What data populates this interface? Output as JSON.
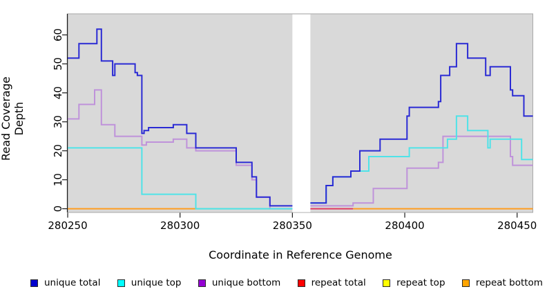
{
  "chart": {
    "xlabel": "Coordinate in Reference Genome",
    "ylabel": "Read Coverage Depth"
  },
  "chart_data": {
    "type": "step-line",
    "title": "",
    "xlabel": "Coordinate in Reference Genome",
    "ylabel": "Read Coverage Depth",
    "x_ticks": [
      280250,
      280300,
      280350,
      280400,
      280450
    ],
    "y_ticks": [
      0,
      10,
      20,
      30,
      40,
      50,
      60
    ],
    "xlim": [
      280250,
      280457
    ],
    "ylim": [
      -1.3,
      67.3
    ],
    "panel_bg": "#d9d9d9",
    "panel_border": "#a8a8a8",
    "no_data_gap": {
      "from": 280350,
      "to": 280358,
      "color": "#ffffff"
    },
    "series": [
      {
        "name": "repeat bottom",
        "legend_color": "#ffa500",
        "line_color": "#ff9d1e",
        "regions": [
          {
            "steps": [
              [
                280250,
                0
              ]
            ],
            "end": 280307
          },
          {
            "steps": [
              [
                280377,
                0
              ]
            ],
            "end": 280457
          }
        ]
      },
      {
        "name": "repeat top",
        "legend_color": "#ffff00",
        "line_color": "#ffff00",
        "regions": [
          {
            "steps": [
              [
                280307,
                0
              ]
            ],
            "end": 280350,
            "color": "#8bd89b",
            "note": "appears green where yellow and cyan overlap at 0"
          }
        ]
      },
      {
        "name": "repeat total",
        "legend_color": "#ff0000",
        "line_color": "#e03a5e",
        "regions": [
          {
            "steps": [
              [
                280358,
                0
              ]
            ],
            "end": 280377
          }
        ]
      },
      {
        "name": "unique bottom",
        "legend_color": "#9400d3",
        "line_color": "#bf92da",
        "regions": [
          {
            "steps": [
              [
                280250,
                31
              ],
              [
                280255,
                36
              ],
              [
                280262,
                41
              ],
              [
                280265,
                29
              ],
              [
                280271,
                25
              ],
              [
                280283,
                22
              ],
              [
                280285,
                23
              ],
              [
                280297,
                24
              ],
              [
                280303,
                21
              ],
              [
                280307,
                20
              ],
              [
                280325,
                15
              ],
              [
                280332,
                10
              ],
              [
                280334,
                4
              ],
              [
                280340,
                0
              ]
            ],
            "end": 280350
          },
          {
            "steps": [
              [
                280358,
                1
              ],
              [
                280377,
                2
              ],
              [
                280386,
                7
              ],
              [
                280401,
                14
              ],
              [
                280415,
                16
              ],
              [
                280417,
                25
              ],
              [
                280447,
                18
              ],
              [
                280448,
                15
              ]
            ],
            "end": 280457
          }
        ]
      },
      {
        "name": "unique top",
        "legend_color": "#00ffff",
        "line_color": "#4fe3e8",
        "regions": [
          {
            "steps": [
              [
                280250,
                21
              ],
              [
                280283,
                5
              ],
              [
                280307,
                0
              ]
            ],
            "end": 280350
          },
          {
            "steps": [
              [
                280358,
                2
              ],
              [
                280365,
                8
              ],
              [
                280368,
                11
              ],
              [
                280376,
                13
              ],
              [
                280384,
                18
              ],
              [
                280402,
                21
              ],
              [
                280419,
                24
              ],
              [
                280423,
                32
              ],
              [
                280428,
                27
              ],
              [
                280437,
                21
              ],
              [
                280438,
                24
              ],
              [
                280452,
                17
              ]
            ],
            "end": 280457
          }
        ]
      },
      {
        "name": "unique total",
        "legend_color": "#0000cd",
        "line_color": "#2a2ad4",
        "regions": [
          {
            "steps": [
              [
                280250,
                52
              ],
              [
                280255,
                57
              ],
              [
                280263,
                62
              ],
              [
                280265,
                51
              ],
              [
                280270,
                46
              ],
              [
                280271,
                50
              ],
              [
                280280,
                47
              ],
              [
                280281,
                46
              ],
              [
                280283,
                26
              ],
              [
                280284,
                27
              ],
              [
                280286,
                28
              ],
              [
                280297,
                29
              ],
              [
                280303,
                26
              ],
              [
                280307,
                21
              ],
              [
                280325,
                16
              ],
              [
                280332,
                11
              ],
              [
                280334,
                4
              ],
              [
                280340,
                1
              ]
            ],
            "end": 280350
          },
          {
            "steps": [
              [
                280358,
                2
              ],
              [
                280365,
                8
              ],
              [
                280368,
                11
              ],
              [
                280376,
                13
              ],
              [
                280380,
                20
              ],
              [
                280389,
                24
              ],
              [
                280401,
                32
              ],
              [
                280402,
                35
              ],
              [
                280415,
                37
              ],
              [
                280416,
                46
              ],
              [
                280420,
                49
              ],
              [
                280423,
                57
              ],
              [
                280428,
                52
              ],
              [
                280436,
                46
              ],
              [
                280438,
                49
              ],
              [
                280447,
                41
              ],
              [
                280448,
                39
              ],
              [
                280453,
                32
              ]
            ],
            "end": 280457
          }
        ]
      }
    ],
    "legend_order": [
      "unique total",
      "unique top",
      "unique bottom",
      "repeat total",
      "repeat top",
      "repeat bottom"
    ]
  }
}
